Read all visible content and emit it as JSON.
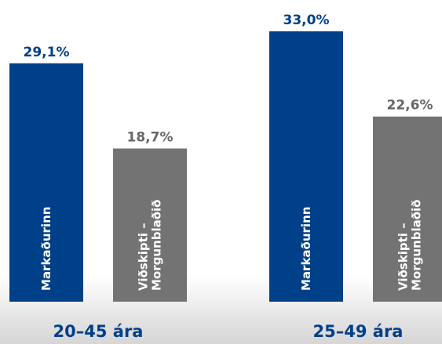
{
  "chart_data": {
    "type": "bar",
    "title": "",
    "xlabel": "",
    "ylabel": "",
    "unit": "%",
    "ylim": [
      0,
      33.0
    ],
    "colors": {
      "bar_blue": "#004088",
      "bar_gray": "#737373",
      "label_blue": "#003f8a",
      "label_gray": "#666666"
    },
    "groups": [
      {
        "label": "20–45 ára",
        "bars": [
          {
            "name_lines": [
              "Markaðurinn"
            ],
            "value": 29.1,
            "value_text": "29,1%",
            "color": "#004088",
            "label_color": "#003f8a"
          },
          {
            "name_lines": [
              "Viðskipti –",
              "Morgunblaðið"
            ],
            "value": 18.7,
            "value_text": "18,7%",
            "color": "#737373",
            "label_color": "#666666"
          }
        ]
      },
      {
        "label": "25–49 ára",
        "bars": [
          {
            "name_lines": [
              "Markaðurinn"
            ],
            "value": 33.0,
            "value_text": "33,0%",
            "color": "#004088",
            "label_color": "#003f8a"
          },
          {
            "name_lines": [
              "Viðskipti –",
              "Morgunblaðið"
            ],
            "value": 22.6,
            "value_text": "22,6%",
            "color": "#737373",
            "label_color": "#666666"
          }
        ]
      }
    ]
  }
}
